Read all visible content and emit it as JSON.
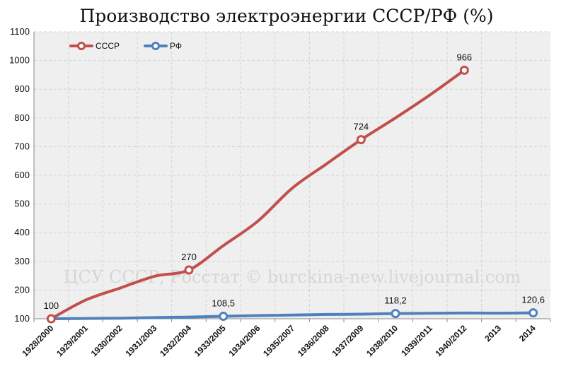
{
  "chart_data": {
    "type": "line",
    "title": "Производство электроэнергии СССР/РФ (%)",
    "watermark": "ЦСУ СССР, Росстат © burckina-new.livejournal.com",
    "categories": [
      "1928/2000",
      "1929/2001",
      "1930/2002",
      "1931/2003",
      "1932/2004",
      "1933/2005",
      "1934/2006",
      "1935/2007",
      "1936/2008",
      "1937/2009",
      "1938/2010",
      "1939/2011",
      "1940/2012",
      "2013",
      "2014"
    ],
    "ylim": [
      100,
      1100
    ],
    "yticks": [
      "100",
      "200",
      "300",
      "400",
      "500",
      "600",
      "700",
      "800",
      "900",
      "1000",
      "1100"
    ],
    "legend_position": "top-left",
    "grid": true,
    "series": [
      {
        "name": "СССР",
        "color": "#c0504d",
        "values": [
          100,
          165,
          207,
          248,
          270,
          355,
          440,
          555,
          640,
          724,
          800,
          880,
          966,
          null,
          null
        ],
        "labels": [
          "100",
          "",
          "",
          "",
          "270",
          "",
          "",
          "",
          "",
          "724",
          "",
          "",
          "966",
          "",
          ""
        ]
      },
      {
        "name": "РФ",
        "color": "#4f81bd",
        "values": [
          100,
          101,
          102,
          104,
          106,
          108.5,
          111,
          113,
          115,
          116,
          118.2,
          119,
          120,
          119.5,
          120.6
        ],
        "labels": [
          "",
          "",
          "",
          "",
          "",
          "108,5",
          "",
          "",
          "",
          "",
          "118,2",
          "",
          "",
          "",
          "120,6"
        ]
      }
    ]
  }
}
